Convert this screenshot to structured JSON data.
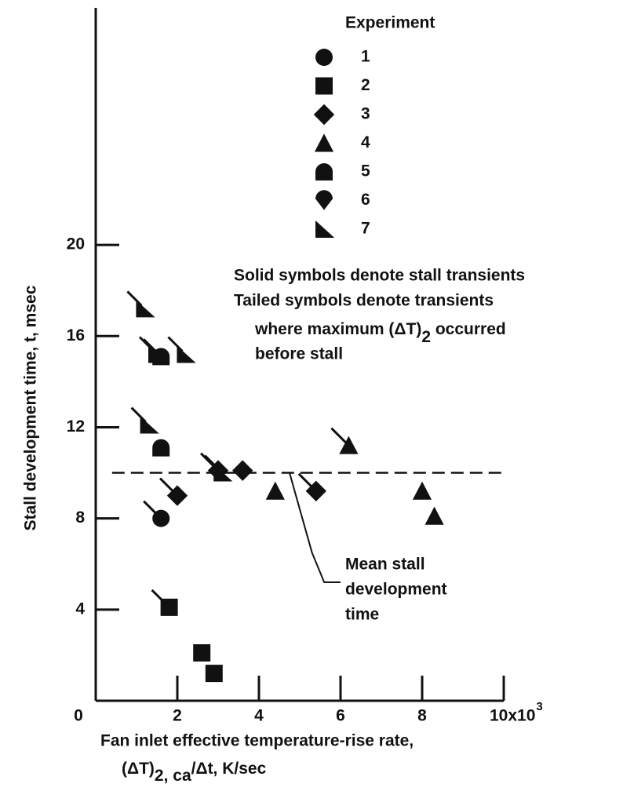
{
  "chart_data": {
    "type": "scatter",
    "y_label": "Stall development time, t, msec",
    "x_label": [
      "Fan inlet effective temperature-rise rate,",
      "(ΔT)",
      "2, ca",
      "/Δt, K/sec"
    ],
    "xlim": [
      0,
      10
    ],
    "ylim": [
      0,
      30.4
    ],
    "xticks": [
      0,
      2,
      4,
      6,
      8,
      {
        "value": 10,
        "label": "10x10"
      }
    ],
    "xtick_exponent": "3",
    "yticks": [
      4,
      8,
      12,
      16,
      20
    ],
    "legend_title": "Experiment",
    "notes": [
      "Solid symbols denote stall transients",
      "Tailed symbols denote transients",
      "where maximum (ΔT)",
      "2",
      " occurred",
      "before stall"
    ],
    "mean_line": {
      "value": 10,
      "x": [
        0.4,
        10
      ],
      "label": [
        "Mean stall",
        "development",
        "time"
      ]
    },
    "series": [
      {
        "name": "1",
        "marker": "circle",
        "color": "#111",
        "x": [
          1.6
        ],
        "values": [
          8
        ],
        "tailed": [
          true
        ]
      },
      {
        "name": "2",
        "marker": "square",
        "color": "#111",
        "x": [
          1.8,
          2.6,
          2.9
        ],
        "values": [
          4.1,
          2.1,
          1.2
        ],
        "tailed": [
          true,
          false,
          false
        ]
      },
      {
        "name": "3",
        "marker": "diamond",
        "color": "#111",
        "x": [
          2.0,
          3.0,
          3.6,
          5.4
        ],
        "values": [
          9,
          10.1,
          10.1,
          9.2
        ],
        "tailed": [
          true,
          true,
          false,
          true
        ]
      },
      {
        "name": "4",
        "marker": "triangle",
        "color": "#111",
        "x": [
          4.4,
          6.2,
          8.0,
          8.3
        ],
        "values": [
          9.2,
          11.2,
          9.2,
          8.1
        ],
        "tailed": [
          false,
          true,
          false,
          false
        ]
      },
      {
        "name": "5",
        "marker": "dome",
        "color": "#111",
        "x": [
          1.6,
          1.6
        ],
        "values": [
          11.1,
          15.1
        ],
        "tailed": [
          false,
          true
        ]
      },
      {
        "name": "6",
        "marker": "drop",
        "color": "#111",
        "x": [],
        "values": [],
        "tailed": []
      },
      {
        "name": "7",
        "marker": "right-triangle",
        "color": "#111",
        "x": [
          1.2,
          1.3,
          1.5,
          2.2,
          3.1
        ],
        "values": [
          17.2,
          12.1,
          15.2,
          15.2,
          10
        ],
        "tailed": [
          true,
          true,
          true,
          true,
          true
        ]
      }
    ]
  }
}
